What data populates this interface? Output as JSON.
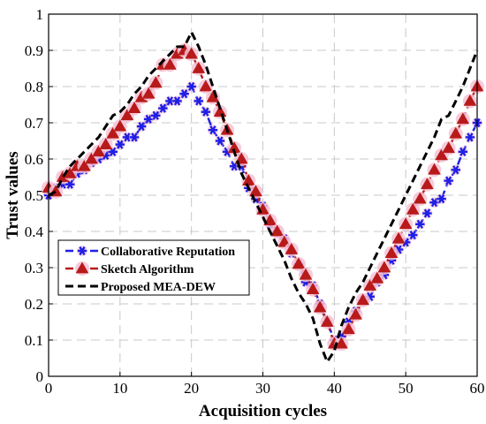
{
  "chart_data": {
    "type": "line",
    "title": "",
    "xlabel": "Acquisition cycles",
    "ylabel": "Trust values",
    "xlim": [
      0,
      60
    ],
    "ylim": [
      0,
      1
    ],
    "xticks": [
      0,
      10,
      20,
      30,
      40,
      50,
      60
    ],
    "yticks": [
      0,
      0.1,
      0.2,
      0.3,
      0.4,
      0.5,
      0.6,
      0.7,
      0.8,
      0.9,
      1
    ],
    "grid": true,
    "legend_position": "bottom-left",
    "series": [
      {
        "name": "Collaborative Reputation",
        "color": "#1f1fe6",
        "line_style": "dashed",
        "marker": "asterisk",
        "x": [
          0,
          1,
          2,
          3,
          4,
          5,
          6,
          7,
          8,
          9,
          10,
          11,
          12,
          13,
          14,
          15,
          16,
          17,
          18,
          19,
          20,
          21,
          22,
          23,
          24,
          25,
          26,
          27,
          28,
          29,
          30,
          31,
          32,
          33,
          34,
          35,
          36,
          37,
          38,
          39,
          40,
          41,
          42,
          43,
          44,
          45,
          46,
          47,
          48,
          49,
          50,
          51,
          52,
          53,
          54,
          55,
          56,
          57,
          58,
          59,
          60
        ],
        "y": [
          0.5,
          0.52,
          0.53,
          0.53,
          0.56,
          0.57,
          0.59,
          0.6,
          0.61,
          0.62,
          0.64,
          0.66,
          0.66,
          0.69,
          0.71,
          0.72,
          0.74,
          0.76,
          0.76,
          0.78,
          0.8,
          0.76,
          0.73,
          0.68,
          0.65,
          0.62,
          0.58,
          0.58,
          0.52,
          0.49,
          0.47,
          0.42,
          0.4,
          0.38,
          0.34,
          0.31,
          0.26,
          0.25,
          0.2,
          0.15,
          0.1,
          0.11,
          0.15,
          0.18,
          0.21,
          0.22,
          0.26,
          0.28,
          0.32,
          0.35,
          0.37,
          0.39,
          0.42,
          0.45,
          0.48,
          0.49,
          0.54,
          0.57,
          0.62,
          0.66,
          0.7
        ]
      },
      {
        "name": "Sketch Algorithm",
        "color": "#b81a1a",
        "line_style": "dashed",
        "marker": "triangle",
        "x": [
          0,
          1,
          2,
          3,
          4,
          5,
          6,
          7,
          8,
          9,
          10,
          11,
          12,
          13,
          14,
          15,
          16,
          17,
          18,
          19,
          20,
          21,
          22,
          23,
          24,
          25,
          26,
          27,
          28,
          29,
          30,
          31,
          32,
          33,
          34,
          35,
          36,
          37,
          38,
          39,
          40,
          41,
          42,
          43,
          44,
          45,
          46,
          47,
          48,
          49,
          50,
          51,
          52,
          53,
          54,
          55,
          56,
          57,
          58,
          59,
          60
        ],
        "y": [
          0.52,
          0.51,
          0.55,
          0.56,
          0.58,
          0.58,
          0.6,
          0.62,
          0.64,
          0.67,
          0.69,
          0.72,
          0.74,
          0.77,
          0.78,
          0.81,
          0.86,
          0.86,
          0.89,
          0.9,
          0.89,
          0.85,
          0.8,
          0.77,
          0.73,
          0.68,
          0.63,
          0.6,
          0.54,
          0.51,
          0.46,
          0.43,
          0.4,
          0.37,
          0.35,
          0.31,
          0.28,
          0.24,
          0.19,
          0.15,
          0.09,
          0.09,
          0.13,
          0.17,
          0.21,
          0.25,
          0.27,
          0.3,
          0.34,
          0.38,
          0.42,
          0.46,
          0.49,
          0.53,
          0.57,
          0.61,
          0.63,
          0.67,
          0.71,
          0.76,
          0.8
        ]
      },
      {
        "name": "Proposed MEA-DEW",
        "color": "#000000",
        "line_style": "dashed",
        "marker": "none",
        "x": [
          0,
          1,
          2,
          3,
          4,
          5,
          6,
          7,
          8,
          9,
          10,
          11,
          12,
          13,
          14,
          15,
          16,
          17,
          18,
          19,
          20,
          21,
          22,
          23,
          24,
          25,
          26,
          27,
          28,
          29,
          30,
          31,
          32,
          33,
          34,
          35,
          36,
          37,
          38,
          39,
          40,
          41,
          42,
          43,
          44,
          45,
          46,
          47,
          48,
          49,
          50,
          51,
          52,
          53,
          54,
          55,
          56,
          57,
          58,
          59,
          60
        ],
        "y": [
          0.5,
          0.51,
          0.55,
          0.58,
          0.6,
          0.62,
          0.64,
          0.66,
          0.69,
          0.72,
          0.73,
          0.75,
          0.78,
          0.8,
          0.83,
          0.85,
          0.87,
          0.89,
          0.91,
          0.91,
          0.95,
          0.91,
          0.86,
          0.8,
          0.74,
          0.68,
          0.62,
          0.56,
          0.52,
          0.48,
          0.44,
          0.4,
          0.36,
          0.32,
          0.27,
          0.23,
          0.2,
          0.16,
          0.09,
          0.04,
          0.07,
          0.14,
          0.19,
          0.23,
          0.26,
          0.3,
          0.34,
          0.38,
          0.42,
          0.46,
          0.5,
          0.54,
          0.58,
          0.62,
          0.66,
          0.71,
          0.72,
          0.76,
          0.8,
          0.85,
          0.9
        ]
      }
    ]
  }
}
